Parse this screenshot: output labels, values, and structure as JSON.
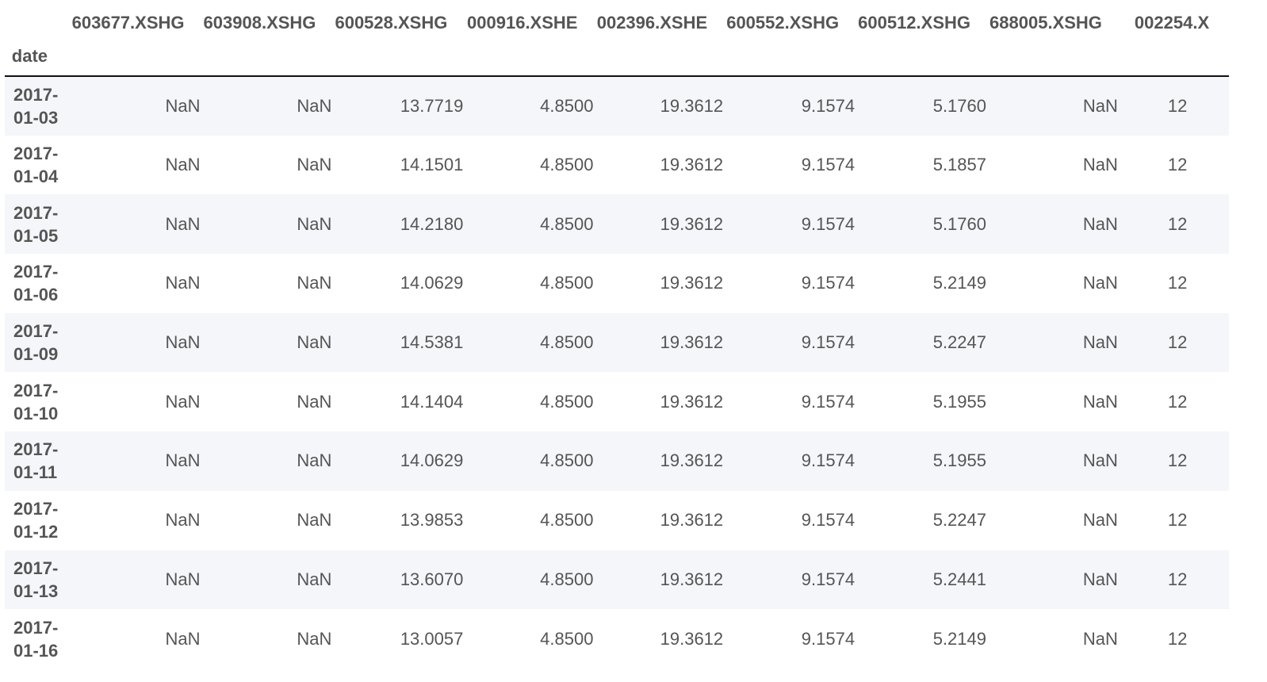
{
  "table": {
    "index_name": "date",
    "columns": [
      "603677.XSHG",
      "603908.XSHG",
      "600528.XSHG",
      "000916.XSHE",
      "002396.XSHE",
      "600552.XSHG",
      "600512.XSHG",
      "688005.XSHG",
      "002254.X"
    ],
    "rows": [
      {
        "date_line1": "2017-",
        "date_line2": "01-03",
        "values": [
          "NaN",
          "NaN",
          "13.7719",
          "4.8500",
          "19.3612",
          "9.1574",
          "5.1760",
          "NaN",
          "12"
        ]
      },
      {
        "date_line1": "2017-",
        "date_line2": "01-04",
        "values": [
          "NaN",
          "NaN",
          "14.1501",
          "4.8500",
          "19.3612",
          "9.1574",
          "5.1857",
          "NaN",
          "12"
        ]
      },
      {
        "date_line1": "2017-",
        "date_line2": "01-05",
        "values": [
          "NaN",
          "NaN",
          "14.2180",
          "4.8500",
          "19.3612",
          "9.1574",
          "5.1760",
          "NaN",
          "12"
        ]
      },
      {
        "date_line1": "2017-",
        "date_line2": "01-06",
        "values": [
          "NaN",
          "NaN",
          "14.0629",
          "4.8500",
          "19.3612",
          "9.1574",
          "5.2149",
          "NaN",
          "12"
        ]
      },
      {
        "date_line1": "2017-",
        "date_line2": "01-09",
        "values": [
          "NaN",
          "NaN",
          "14.5381",
          "4.8500",
          "19.3612",
          "9.1574",
          "5.2247",
          "NaN",
          "12"
        ]
      },
      {
        "date_line1": "2017-",
        "date_line2": "01-10",
        "values": [
          "NaN",
          "NaN",
          "14.1404",
          "4.8500",
          "19.3612",
          "9.1574",
          "5.1955",
          "NaN",
          "12"
        ]
      },
      {
        "date_line1": "2017-",
        "date_line2": "01-11",
        "values": [
          "NaN",
          "NaN",
          "14.0629",
          "4.8500",
          "19.3612",
          "9.1574",
          "5.1955",
          "NaN",
          "12"
        ]
      },
      {
        "date_line1": "2017-",
        "date_line2": "01-12",
        "values": [
          "NaN",
          "NaN",
          "13.9853",
          "4.8500",
          "19.3612",
          "9.1574",
          "5.2247",
          "NaN",
          "12"
        ]
      },
      {
        "date_line1": "2017-",
        "date_line2": "01-13",
        "values": [
          "NaN",
          "NaN",
          "13.6070",
          "4.8500",
          "19.3612",
          "9.1574",
          "5.2441",
          "NaN",
          "12"
        ]
      },
      {
        "date_line1": "2017-",
        "date_line2": "01-16",
        "values": [
          "NaN",
          "NaN",
          "13.0057",
          "4.8500",
          "19.3612",
          "9.1574",
          "5.2149",
          "NaN",
          "12"
        ]
      }
    ]
  },
  "colors": {
    "text": "#555555",
    "striped_row": "#f5f6fa",
    "header_rule": "#111111"
  }
}
